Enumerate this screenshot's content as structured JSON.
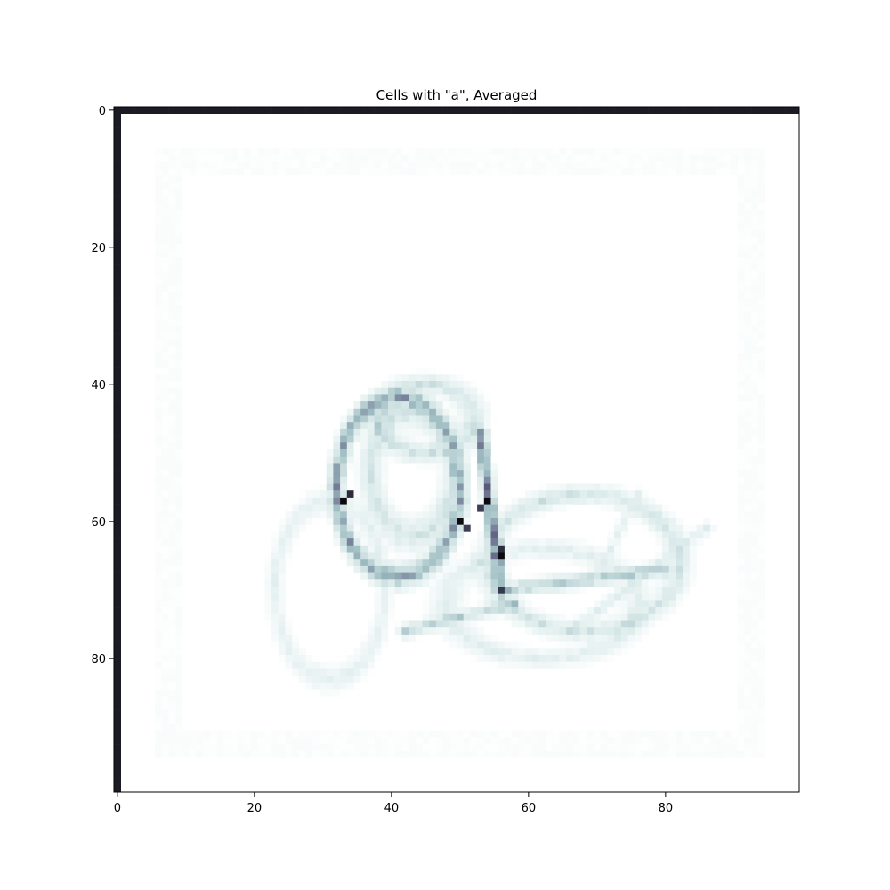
{
  "chart_data": {
    "type": "heatmap",
    "title": "Cells with \"a\", Averaged",
    "xlabel": "",
    "ylabel": "",
    "grid": false,
    "legend": "none",
    "xlim": [
      -0.5,
      99.5
    ],
    "ylim": [
      99.5,
      -0.5
    ],
    "rows": 100,
    "cols": 100,
    "colormap": "bone_r",
    "xticks": [
      0,
      20,
      40,
      60,
      80
    ],
    "yticks": [
      0,
      20,
      40,
      60,
      80
    ],
    "xtick_labels": [
      "0",
      "20",
      "40",
      "60",
      "80"
    ],
    "ytick_labels": [
      "0",
      "20",
      "40",
      "60",
      "80"
    ],
    "background_value": 0.0,
    "border_value": 0.95,
    "border": {
      "row": 0,
      "col": 0
    },
    "faint_frame": {
      "row_start": 6,
      "row_end": 94,
      "col_start": 6,
      "col_end": 94,
      "value": 0.03
    },
    "strokes": [
      {
        "name": "bowl-main",
        "cx": 41,
        "cy": 55,
        "rx": 9,
        "ry": 13,
        "value": 0.55,
        "width": 1.8
      },
      {
        "name": "bowl-inner",
        "cx": 43,
        "cy": 53,
        "rx": 6,
        "ry": 9,
        "value": 0.28,
        "width": 2.5
      },
      {
        "name": "bowl-top",
        "cx": 45,
        "cy": 45,
        "rx": 7,
        "ry": 5,
        "value": 0.3,
        "width": 2.2
      },
      {
        "name": "outer-loop",
        "cx": 31,
        "cy": 70,
        "rx": 8,
        "ry": 13,
        "value": 0.18,
        "width": 1.6
      },
      {
        "name": "tail-right",
        "cx": 68,
        "cy": 66,
        "rx": 14,
        "ry": 10,
        "value": 0.28,
        "width": 2.0
      },
      {
        "name": "tail-lower",
        "cx": 62,
        "cy": 72,
        "rx": 14,
        "ry": 8,
        "value": 0.2,
        "width": 2.0
      }
    ],
    "lines": [
      {
        "name": "stem",
        "x0": 53,
        "y0": 47,
        "x1": 56,
        "y1": 70,
        "value": 0.65,
        "width": 1.5
      },
      {
        "name": "flick-1",
        "x0": 56,
        "y0": 70,
        "x1": 80,
        "y1": 67,
        "value": 0.4,
        "width": 1.6
      },
      {
        "name": "flick-2",
        "x0": 66,
        "y0": 76,
        "x1": 86,
        "y1": 61,
        "value": 0.2,
        "width": 1.4
      },
      {
        "name": "flick-3",
        "x0": 70,
        "y0": 68,
        "x1": 76,
        "y1": 56,
        "value": 0.18,
        "width": 1.2
      },
      {
        "name": "bottom-join",
        "x0": 42,
        "y0": 76,
        "x1": 58,
        "y1": 72,
        "value": 0.35,
        "width": 1.5
      }
    ],
    "hotspots": [
      {
        "col": 33,
        "row": 57,
        "value": 1.0
      },
      {
        "col": 34,
        "row": 56,
        "value": 0.9
      },
      {
        "col": 50,
        "row": 60,
        "value": 1.0
      },
      {
        "col": 51,
        "row": 61,
        "value": 0.85
      },
      {
        "col": 54,
        "row": 57,
        "value": 1.0
      },
      {
        "col": 53,
        "row": 58,
        "value": 0.85
      },
      {
        "col": 56,
        "row": 65,
        "value": 1.0
      },
      {
        "col": 56,
        "row": 64,
        "value": 0.9
      }
    ]
  }
}
